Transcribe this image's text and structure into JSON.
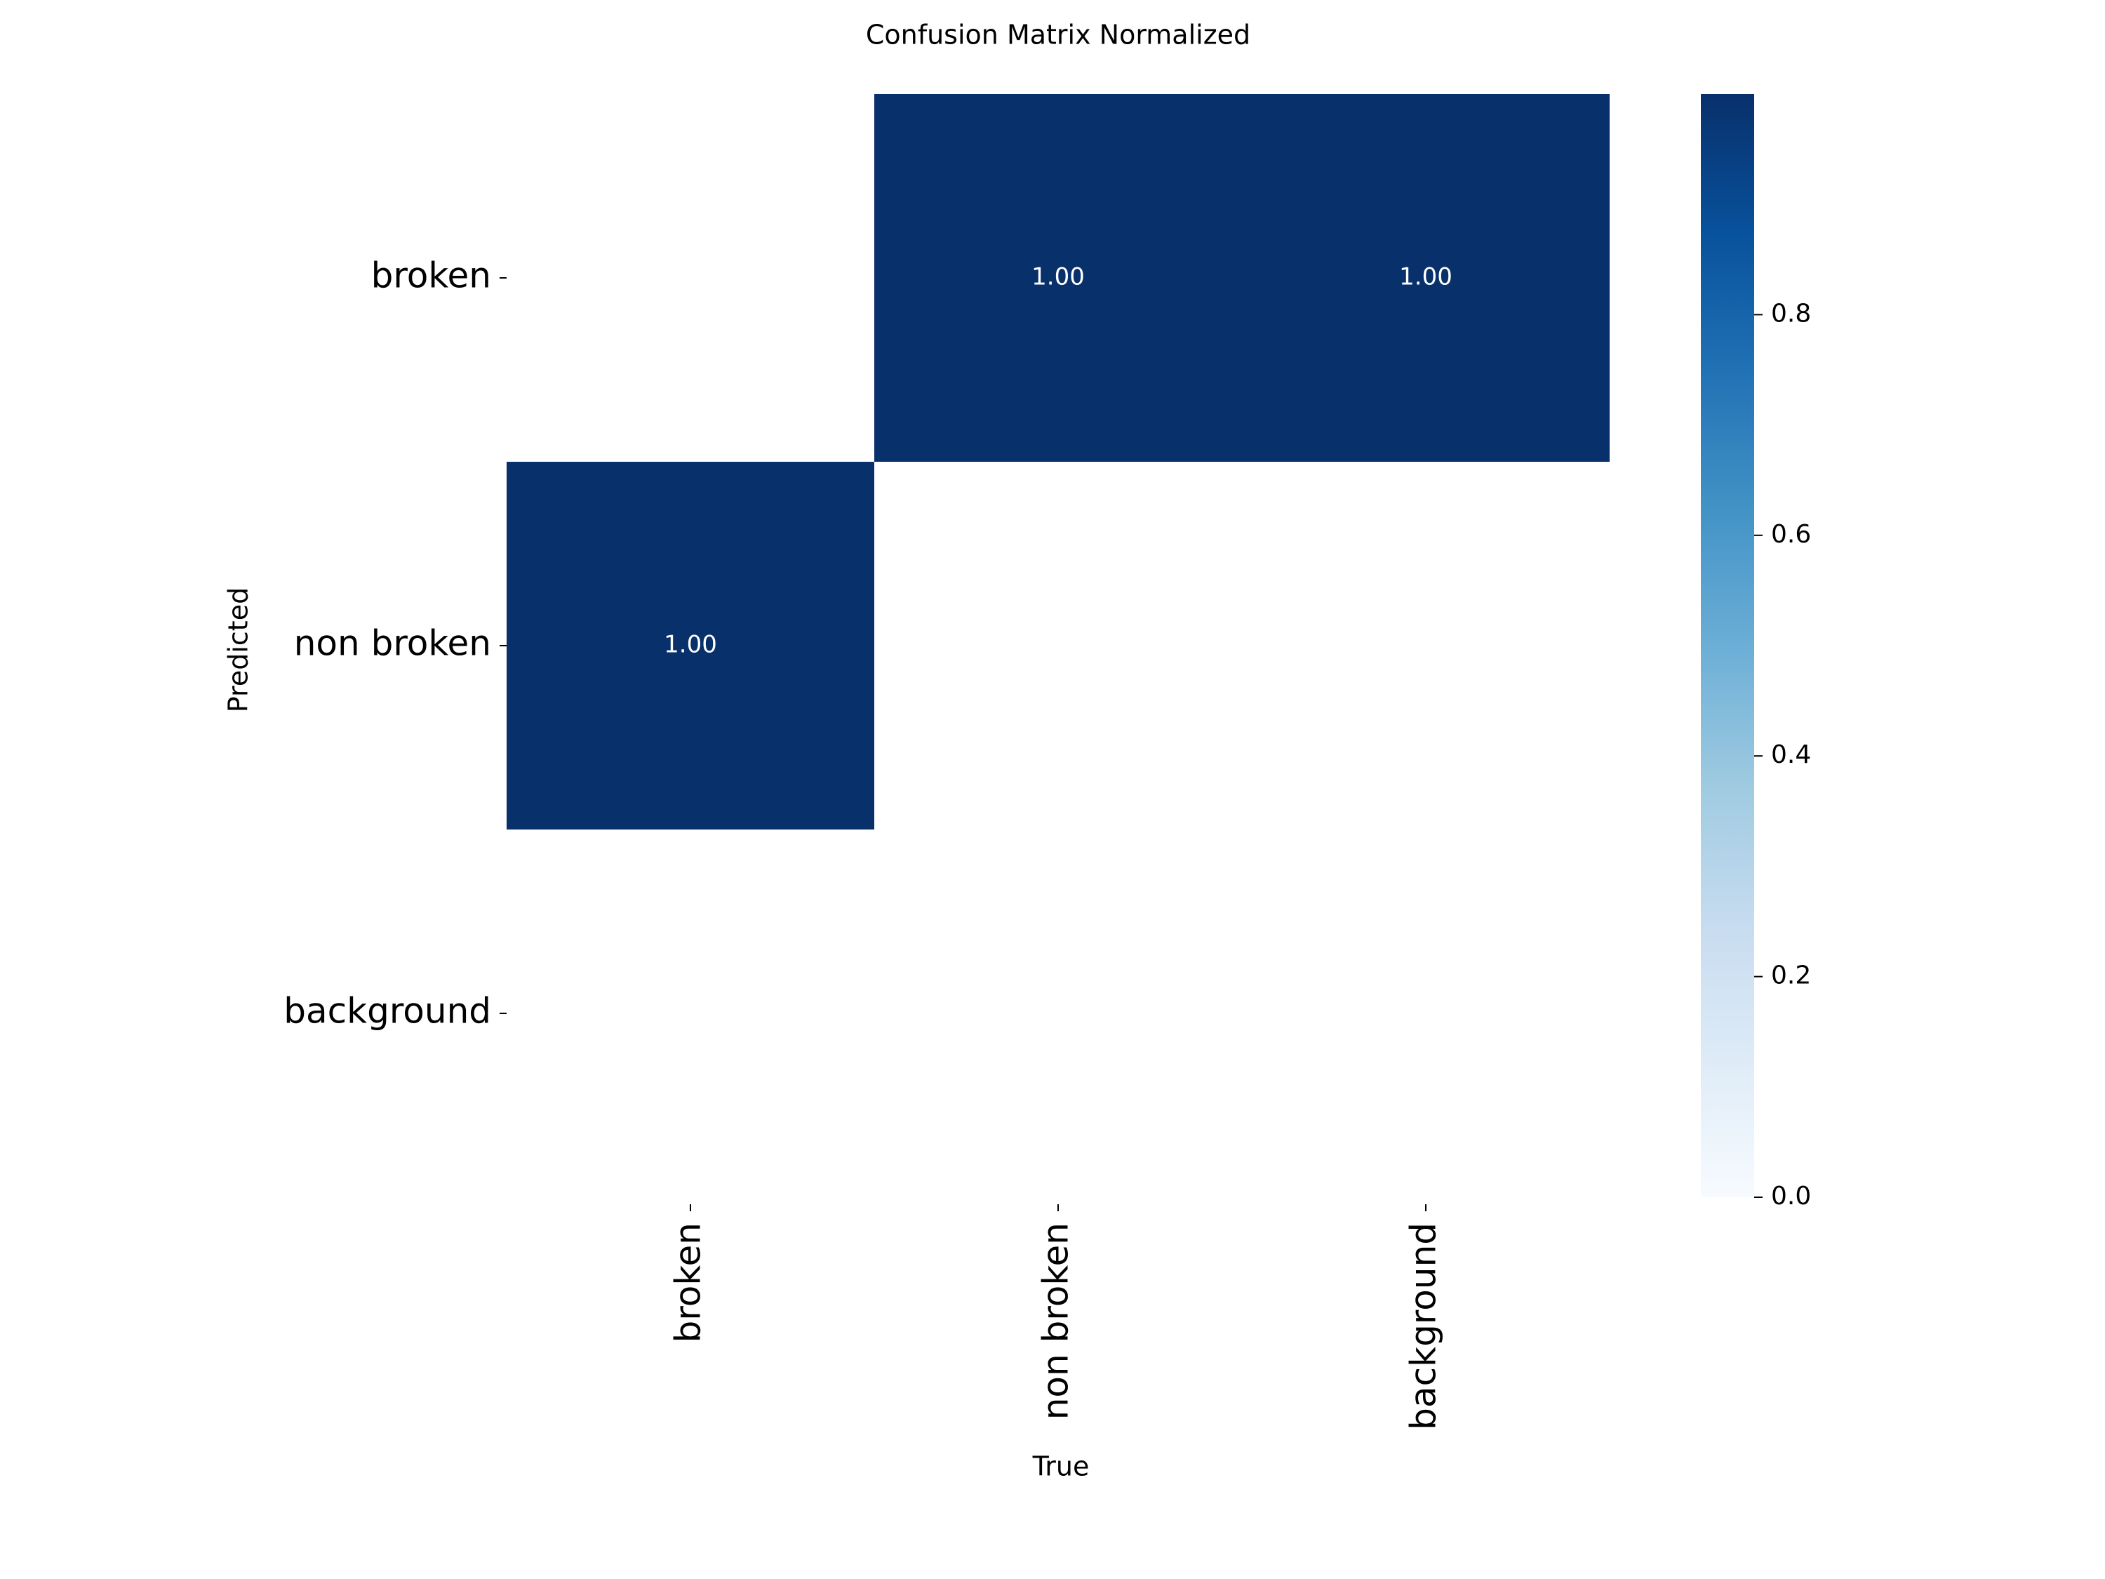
{
  "chart_data": {
    "type": "heatmap",
    "title": "Confusion Matrix Normalized",
    "xlabel": "True",
    "ylabel": "Predicted",
    "x_categories": [
      "broken",
      "non broken",
      "background"
    ],
    "y_categories": [
      "broken",
      "non broken",
      "background"
    ],
    "values": [
      [
        null,
        1.0,
        1.0
      ],
      [
        1.0,
        null,
        null
      ],
      [
        null,
        null,
        null
      ]
    ],
    "cell_labels": [
      [
        "",
        "1.00",
        "1.00"
      ],
      [
        "1.00",
        "",
        ""
      ],
      [
        "",
        "",
        ""
      ]
    ],
    "colormap": "Blues",
    "colorbar": {
      "range": [
        0.0,
        1.0
      ],
      "ticks": [
        0.0,
        0.2,
        0.4,
        0.6,
        0.8
      ],
      "tick_labels": [
        "0.0",
        "0.2",
        "0.4",
        "0.6",
        "0.8"
      ]
    },
    "colors": {
      "high": "#08306b",
      "low": "#f7fbff"
    },
    "grid": false,
    "legend": "colorbar-right"
  }
}
